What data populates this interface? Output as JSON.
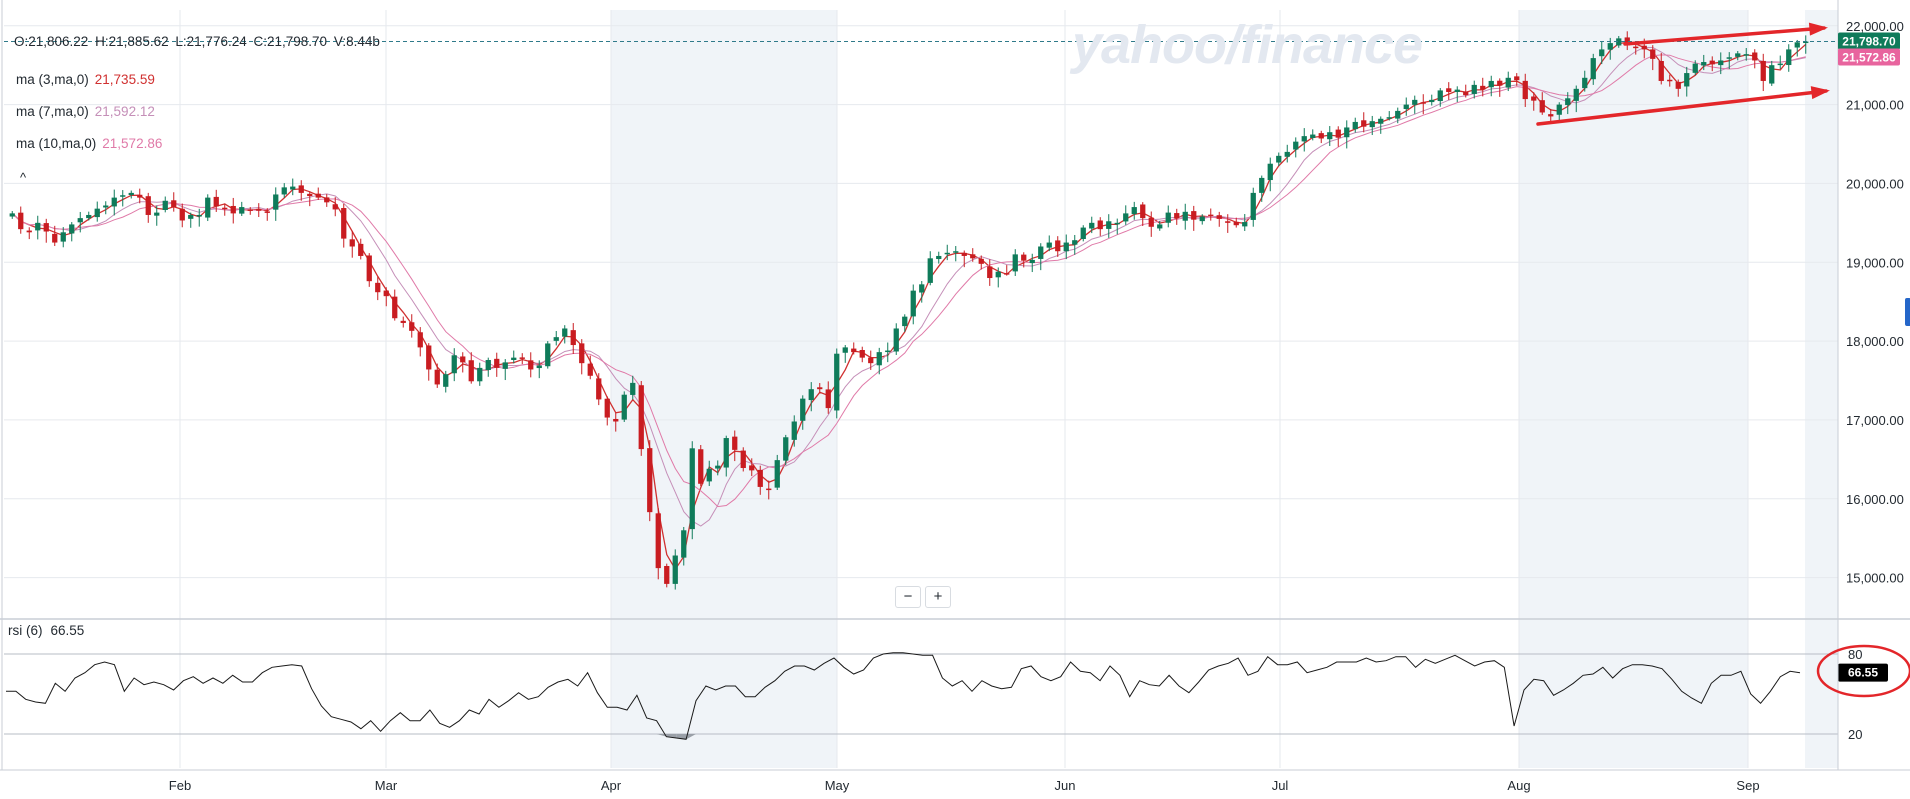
{
  "watermark": "yahoo/finance",
  "ohlc": {
    "o": "O:21,806.22",
    "h": "H:21,885.62",
    "l": "L:21,776.24",
    "c": "C:21,798.70",
    "v": "V:8.44b"
  },
  "ma": [
    {
      "label": "ma (3,ma,0)",
      "value": "21,735.59",
      "color": "#d03030"
    },
    {
      "label": "ma (7,ma,0)",
      "value": "21,592.12",
      "color": "#c58fb8"
    },
    {
      "label": "ma (10,ma,0)",
      "value": "21,572.86",
      "color": "#e07aa8"
    }
  ],
  "collapse_icon": "^",
  "rsi": {
    "label": "rsi (6)",
    "value": "66.55",
    "levels": [
      80,
      20
    ]
  },
  "price_badges": [
    {
      "text": "21,798.70",
      "bg": "#0f7b5a"
    },
    {
      "text": "21,572.86",
      "bg": "#e8649e"
    }
  ],
  "zoom": {
    "minus": "−",
    "plus": "+"
  },
  "colors": {
    "up": "#0f7b5a",
    "down": "#c91c21",
    "grid": "#e6e9ee",
    "shade": "#f0f4f8",
    "annotation": "#e3262a"
  },
  "chart_data": {
    "type": "candlestick",
    "y_ticks": [
      "22,000.00",
      "21,000.00",
      "20,000.00",
      "19,000.00",
      "18,000.00",
      "17,000.00",
      "16,000.00",
      "15,000.00"
    ],
    "ylim": [
      14500,
      22200
    ],
    "x_labels": [
      "Feb",
      "Mar",
      "Apr",
      "May",
      "Jun",
      "Jul",
      "Aug",
      "Sep"
    ],
    "rsi_ticks": [
      "80",
      "20"
    ],
    "close": [
      19620,
      19420,
      19380,
      19500,
      19390,
      19250,
      19380,
      19480,
      19560,
      19600,
      19680,
      19720,
      19820,
      19850,
      19880,
      19820,
      19600,
      19630,
      19780,
      19700,
      19530,
      19600,
      19600,
      19820,
      19710,
      19690,
      19620,
      19700,
      19660,
      19660,
      19640,
      19860,
      19950,
      19960,
      19880,
      19840,
      19820,
      19760,
      19670,
      19300,
      19200,
      19080,
      18760,
      18620,
      18570,
      18290,
      18230,
      18130,
      17920,
      17640,
      17450,
      17580,
      17820,
      17730,
      17490,
      17660,
      17760,
      17660,
      17730,
      17790,
      17780,
      17640,
      17690,
      17970,
      18050,
      18160,
      17950,
      17720,
      17560,
      17260,
      17030,
      16980,
      17320,
      17470,
      16630,
      15830,
      15120,
      14920,
      15280,
      15600,
      16640,
      16190,
      16380,
      16420,
      16770,
      16620,
      16390,
      16360,
      16150,
      16120,
      16490,
      16780,
      16980,
      17270,
      17390,
      17390,
      17150,
      17840,
      17920,
      17860,
      17790,
      17720,
      17860,
      17880,
      18160,
      18310,
      18640,
      18720,
      19050,
      19080,
      19120,
      19140,
      19080,
      19050,
      18980,
      18800,
      18880,
      18860,
      19100,
      19020,
      19030,
      19200,
      19250,
      19140,
      19250,
      19280,
      19440,
      19500,
      19420,
      19520,
      19500,
      19620,
      19700,
      19560,
      19450,
      19480,
      19630,
      19560,
      19640,
      19540,
      19580,
      19600,
      19550,
      19500,
      19470,
      19510,
      19880,
      20070,
      20250,
      20350,
      20400,
      20530,
      20600,
      20620,
      20570,
      20650,
      20580,
      20710,
      20780,
      20720,
      20790,
      20820,
      20840,
      20920,
      21000,
      21060,
      21020,
      21060,
      21180,
      21160,
      21190,
      21120,
      21250,
      21190,
      21300,
      21240,
      21340,
      21310,
      21070,
      21050,
      20900,
      20850,
      21000,
      21080,
      21200,
      21340,
      21590,
      21700,
      21780,
      21840,
      21750,
      21720,
      21700,
      21580,
      21300,
      21300,
      21200,
      21400,
      21520,
      21540,
      21510,
      21560,
      21600,
      21650,
      21640,
      21560,
      21300,
      21500,
      21520,
      21700,
      21790,
      21800
    ],
    "rsi_values": [
      52,
      52,
      46,
      44,
      43,
      58,
      52,
      62,
      66,
      72,
      74,
      72,
      52,
      62,
      57,
      59,
      57,
      53,
      60,
      63,
      58,
      62,
      58,
      64,
      59,
      59,
      66,
      70,
      71,
      72,
      71,
      54,
      41,
      33,
      31,
      29,
      24,
      30,
      22,
      30,
      36,
      30,
      30,
      38,
      28,
      25,
      30,
      38,
      35,
      46,
      40,
      45,
      51,
      46,
      48,
      55,
      59,
      61,
      56,
      66,
      51,
      40,
      40,
      38,
      49,
      32,
      30,
      18,
      17,
      16,
      45,
      56,
      53,
      56,
      56,
      48,
      48,
      55,
      60,
      67,
      71,
      71,
      68,
      73,
      77,
      70,
      65,
      68,
      77,
      80,
      81,
      81,
      80,
      79,
      79,
      62,
      56,
      60,
      52,
      60,
      56,
      54,
      55,
      69,
      71,
      63,
      60,
      63,
      74,
      67,
      66,
      60,
      71,
      64,
      48,
      60,
      57,
      56,
      64,
      56,
      51,
      59,
      68,
      71,
      73,
      77,
      64,
      67,
      78,
      72,
      72,
      74,
      66,
      68,
      70,
      74,
      74,
      74,
      77,
      74,
      75,
      78,
      78,
      70,
      76,
      73,
      76,
      79,
      75,
      71,
      74,
      75,
      70,
      26,
      53,
      61,
      60,
      49,
      53,
      58,
      64,
      65,
      70,
      62,
      69,
      72,
      72,
      71,
      69,
      61,
      52,
      47,
      43,
      58,
      64,
      64,
      67,
      50,
      43,
      52,
      63,
      67,
      66
    ],
    "annotations": [
      "upper trend arrow",
      "lower trend arrow",
      "rsi value circle"
    ]
  }
}
